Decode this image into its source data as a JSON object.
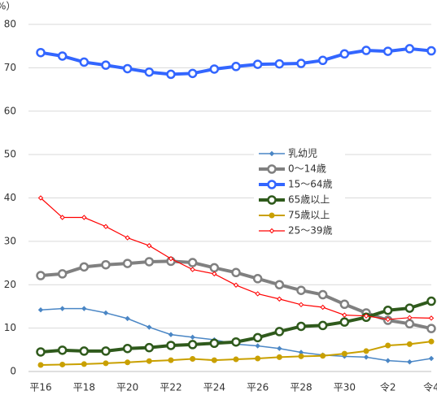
{
  "chart_data": {
    "type": "line",
    "y_label": "%）",
    "categories": [
      "平16",
      null,
      "平18",
      null,
      "平20",
      null,
      "平22",
      null,
      "平24",
      null,
      "平26",
      null,
      "平28",
      null,
      "平30",
      null,
      "令2",
      null,
      "令4"
    ],
    "ylim": [
      0,
      80
    ],
    "yticks": [
      0,
      10,
      20,
      30,
      40,
      50,
      60,
      70,
      80
    ],
    "grid": true,
    "series": [
      {
        "name": "乳幼児",
        "color": "#4a86c5",
        "values": [
          14.2,
          14.5,
          14.5,
          13.5,
          12.2,
          10.2,
          8.5,
          7.9,
          7.3,
          6.3,
          5.9,
          5.3,
          4.4,
          3.8,
          3.5,
          3.3,
          2.5,
          2.2,
          3.0
        ]
      },
      {
        "name": "0～14歳",
        "color": "#808080",
        "values": [
          22.1,
          22.5,
          24.1,
          24.6,
          24.9,
          25.3,
          25.4,
          25.1,
          23.9,
          22.8,
          21.4,
          20.0,
          18.7,
          17.7,
          15.5,
          13.5,
          11.8,
          11.0,
          9.9
        ]
      },
      {
        "name": "15～64歳",
        "color": "#3366ff",
        "values": [
          73.5,
          72.7,
          71.3,
          70.6,
          69.8,
          69.0,
          68.5,
          68.7,
          69.7,
          70.3,
          70.8,
          70.9,
          71.0,
          71.7,
          73.2,
          74.0,
          73.8,
          74.4,
          73.9
        ]
      },
      {
        "name": "65歳以上",
        "color": "#2f5a1c",
        "values": [
          4.5,
          4.9,
          4.7,
          4.7,
          5.3,
          5.5,
          6.0,
          6.2,
          6.5,
          6.8,
          7.8,
          9.2,
          10.4,
          10.6,
          11.4,
          12.5,
          14.1,
          14.6,
          16.2
        ]
      },
      {
        "name": "75歳以上",
        "color": "#c9a000",
        "values": [
          1.5,
          1.6,
          1.7,
          1.9,
          2.1,
          2.4,
          2.6,
          2.9,
          2.6,
          2.8,
          3.0,
          3.3,
          3.5,
          3.6,
          4.1,
          4.7,
          6.0,
          6.3,
          6.9
        ]
      },
      {
        "name": "25～39歳",
        "color": "#ff0000",
        "values": [
          40.0,
          35.5,
          35.5,
          33.4,
          30.8,
          29.0,
          26.0,
          23.5,
          22.5,
          19.9,
          17.9,
          16.7,
          15.4,
          14.8,
          13.0,
          12.8,
          12.0,
          12.4,
          12.3
        ]
      }
    ]
  }
}
